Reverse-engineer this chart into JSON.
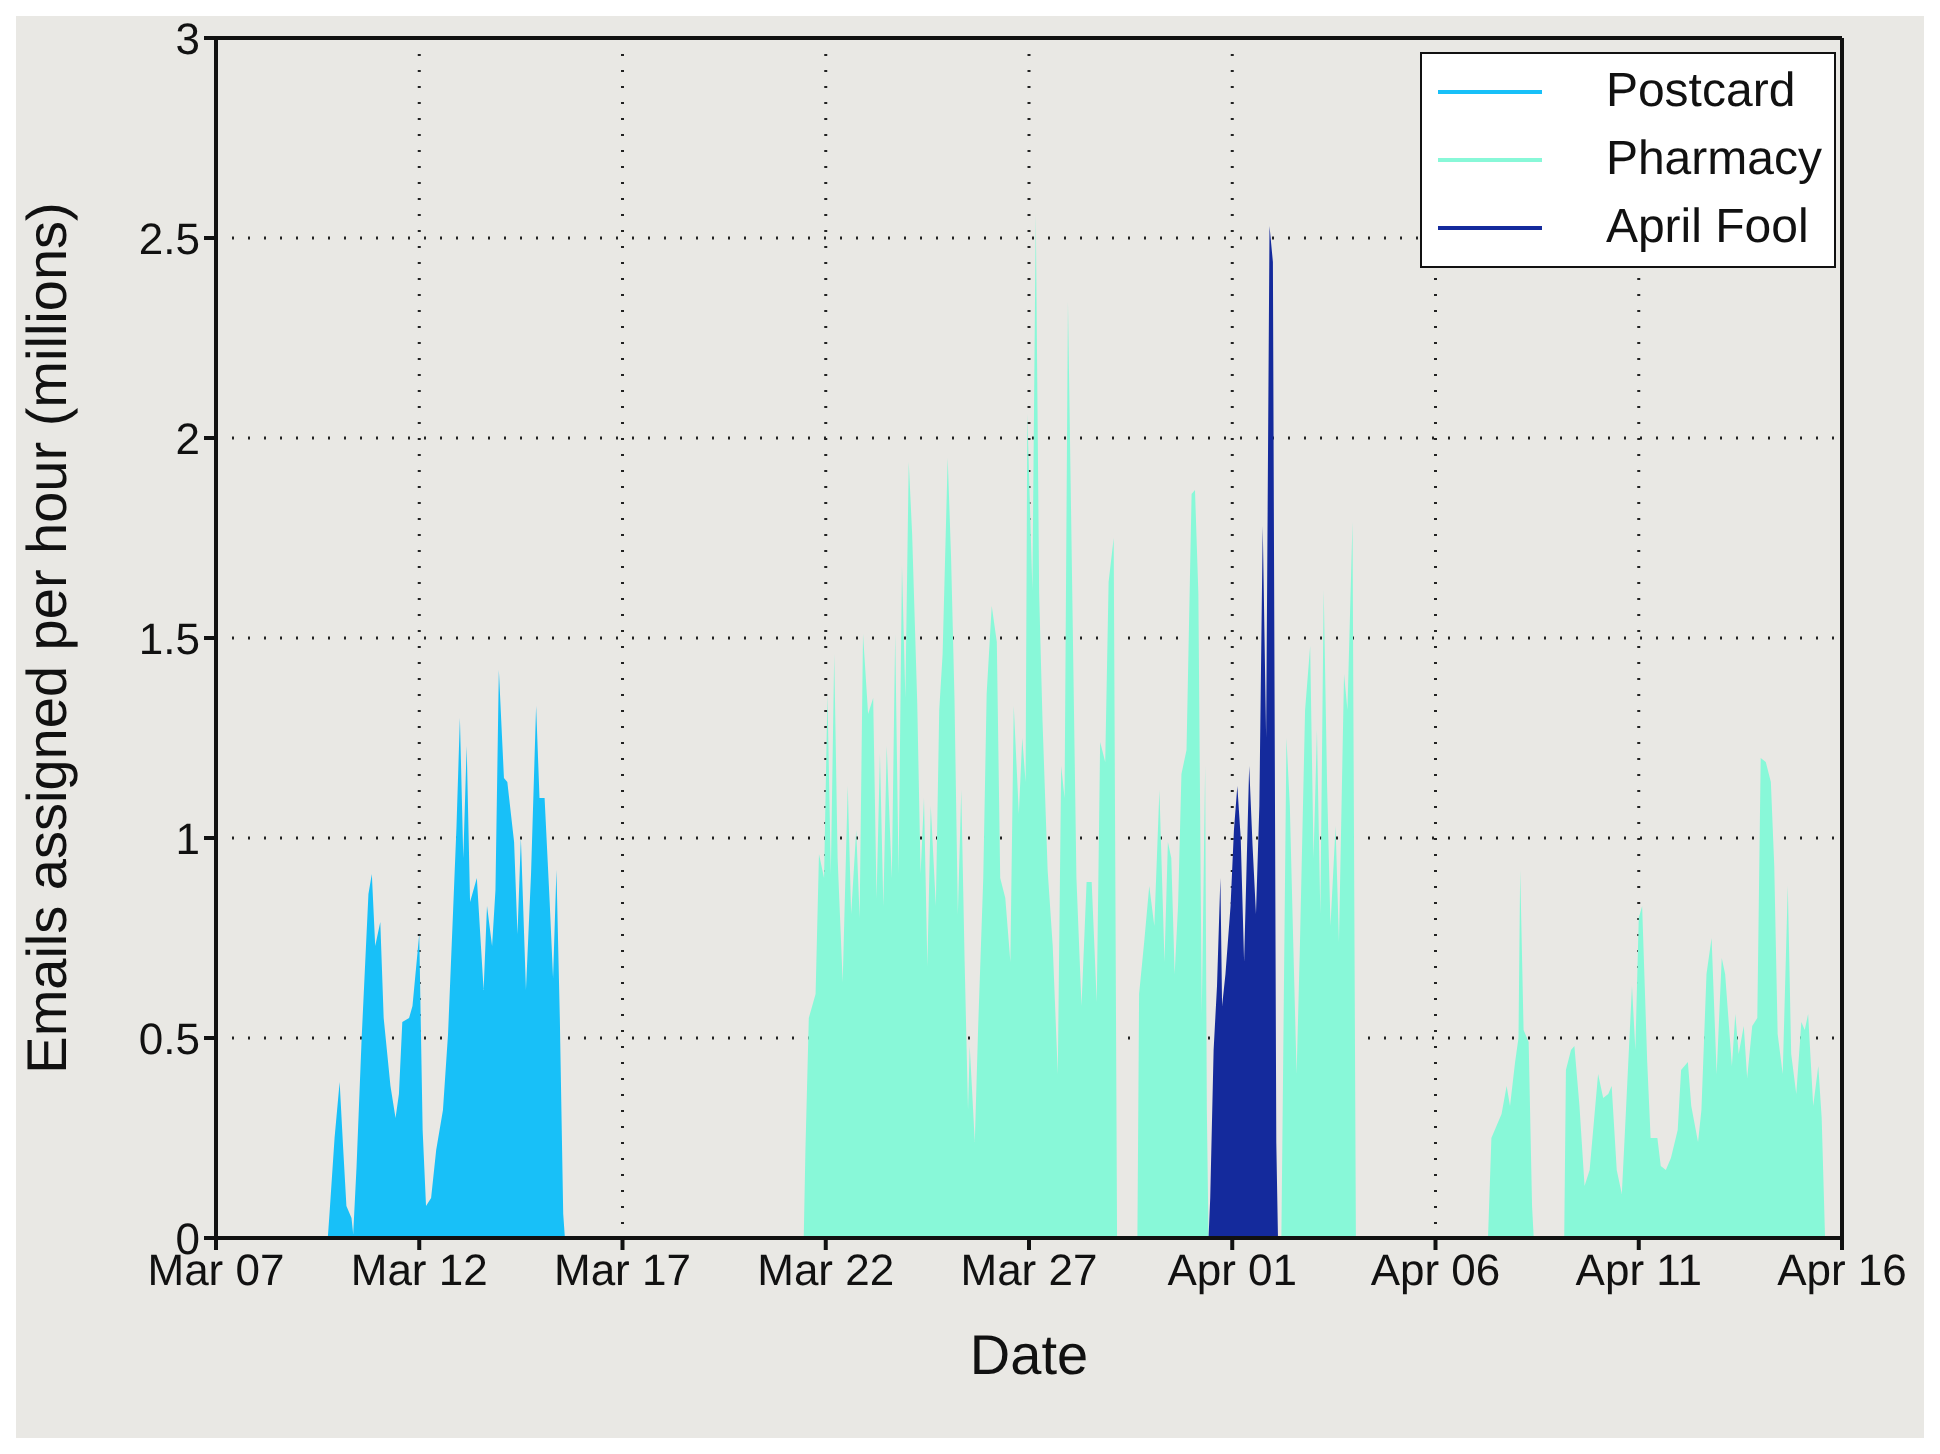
{
  "chart_data": {
    "type": "area",
    "xlabel": "Date",
    "ylabel": "Emails assigned per hour (millions)",
    "xlim": [
      "--03-07",
      "--04-16"
    ],
    "xticks": [
      {
        "value": "--03-07",
        "label": "Mar 07"
      },
      {
        "value": "--03-12",
        "label": "Mar 12"
      },
      {
        "value": "--03-17",
        "label": "Mar 17"
      },
      {
        "value": "--03-22",
        "label": "Mar 22"
      },
      {
        "value": "--03-27",
        "label": "Mar 27"
      },
      {
        "value": "--04-01",
        "label": "Apr 01"
      },
      {
        "value": "--04-06",
        "label": "Apr 06"
      },
      {
        "value": "--04-11",
        "label": "Apr 11"
      },
      {
        "value": "--04-16",
        "label": "Apr 16"
      }
    ],
    "ylim": [
      0,
      3
    ],
    "yticks": [
      0,
      0.5,
      1,
      1.5,
      2,
      2.5,
      3
    ],
    "grid": true,
    "legend": "top right",
    "series": [
      {
        "name": "Postcard",
        "color": "#18c0f8",
        "x": [
          "--03-09T18:00",
          "--03-09T19:00",
          "--03-09T22:00",
          "--03-10T01:00",
          "--03-10T03:00",
          "--03-10T05:00",
          "--03-10T08:00",
          "--03-10T09:00",
          "--03-10T11:00",
          "--03-10T14:00",
          "--03-10T18:00",
          "--03-10T20:00",
          "--03-10T22:00",
          "--03-11T01:00",
          "--03-11T03:00",
          "--03-11T07:00",
          "--03-11T10:00",
          "--03-11T12:00",
          "--03-11T14:00",
          "--03-11T18:00",
          "--03-11T20:00",
          "--03-12T00:00",
          "--03-12T02:00",
          "--03-12T04:00",
          "--03-12T07:00",
          "--03-12T10:00",
          "--03-12T14:00",
          "--03-12T17:00",
          "--03-12T20:00",
          "--03-12T22:00",
          "--03-13T00:00",
          "--03-13T02:00",
          "--03-13T04:00",
          "--03-13T06:00",
          "--03-13T10:00",
          "--03-13T14:00",
          "--03-13T16:00",
          "--03-13T19:00",
          "--03-13T21:00",
          "--03-13T23:00",
          "--03-14T02:00",
          "--03-14T04:00",
          "--03-14T08:00",
          "--03-14T10:00",
          "--03-14T12:00",
          "--03-14T15:00",
          "--03-14T18:00",
          "--03-14T21:00",
          "--03-14T23:00",
          "--03-15T02:00",
          "--03-15T05:00",
          "--03-15T07:00",
          "--03-15T09:00",
          "--03-15T11:00",
          "--03-15T13:00",
          "--03-15T14:00"
        ],
        "values": [
          0,
          0.06,
          0.25,
          0.39,
          0.23,
          0.08,
          0.05,
          0.01,
          0.18,
          0.5,
          0.86,
          0.91,
          0.73,
          0.79,
          0.55,
          0.38,
          0.3,
          0.36,
          0.54,
          0.55,
          0.58,
          0.76,
          0.27,
          0.08,
          0.1,
          0.22,
          0.32,
          0.51,
          0.82,
          1.03,
          1.3,
          0.95,
          1.23,
          0.84,
          0.9,
          0.62,
          0.83,
          0.73,
          0.87,
          1.42,
          1.15,
          1.14,
          0.99,
          0.76,
          1.0,
          0.62,
          0.91,
          1.33,
          1.1,
          1.1,
          0.84,
          0.65,
          0.92,
          0.55,
          0.06,
          0
        ]
      },
      {
        "name": "Pharmacy",
        "color": "#88f8d8",
        "x": [
          "--03-21T11:00",
          "--03-21T12:00",
          "--03-21T14:00",
          "--03-21T18:00",
          "--03-21T20:00",
          "--03-21T23:00",
          "--03-22T01:00",
          "--03-22T03:00",
          "--03-22T05:00",
          "--03-22T07:00",
          "--03-22T10:00",
          "--03-22T13:00",
          "--03-22T15:00",
          "--03-22T18:00",
          "--03-22T20:00",
          "--03-22T22:00",
          "--03-23T01:00",
          "--03-23T04:00",
          "--03-23T06:00",
          "--03-23T08:00",
          "--03-23T10:00",
          "--03-23T12:00",
          "--03-23T15:00",
          "--03-23T17:00",
          "--03-23T19:00",
          "--03-23T21:00",
          "--03-23T23:00",
          "--03-24T01:00",
          "--03-24T03:00",
          "--03-24T06:00",
          "--03-24T08:00",
          "--03-24T10:00",
          "--03-24T12:00",
          "--03-24T14:00",
          "--03-24T17:00",
          "--03-24T19:00",
          "--03-24T21:00",
          "--03-25T00:00",
          "--03-25T02:00",
          "--03-25T04:00",
          "--03-25T06:00",
          "--03-25T08:00",
          "--03-25T10:00",
          "--03-25T12:00",
          "--03-25T13:00",
          "--03-25T16:00",
          "--03-25T18:00",
          "--03-25T21:00",
          "--03-25T23:00",
          "--03-26T02:00",
          "--03-26T05:00",
          "--03-26T07:00",
          "--03-26T10:00",
          "--03-26T13:00",
          "--03-26T15:00",
          "--03-26T18:00",
          "--03-26T20:00",
          "--03-26T22:00",
          "--03-26T23:00",
          "--03-27T02:00",
          "--03-27T04:00",
          "--03-27T06:00",
          "--03-27T08:00",
          "--03-27T11:00",
          "--03-27T14:00",
          "--03-27T17:00",
          "--03-27T19:00",
          "--03-27T21:00",
          "--03-27T23:00",
          "--03-28T01:00",
          "--03-28T04:00",
          "--03-28T07:00",
          "--03-28T10:00",
          "--03-28T13:00",
          "--03-28T16:00",
          "--03-28T18:00",
          "--03-28T21:00",
          "--03-28T23:00",
          "--03-29T02:00",
          "--03-29T04:00",
          "--03-29T12:00",
          "--03-29T16:00",
          "--03-29T17:00",
          "--03-29T20:00",
          "--03-29T23:00",
          "--03-30T02:00",
          "--03-30T05:00",
          "--03-30T08:00",
          "--03-30T10:00",
          "--03-30T12:00",
          "--03-30T14:00",
          "--03-30T16:00",
          "--03-30T18:00",
          "--03-30T21:00",
          "--03-31T00:00",
          "--03-31T02:00",
          "--03-31T04:00",
          "--03-31T06:00",
          "--03-31T08:00",
          "--03-31T09:00",
          "--03-31T10:00",
          "--04-01T12:00",
          "--04-02T05:00",
          "--04-02T06:00",
          "--04-02T08:00",
          "--04-02T10:00",
          "--04-02T12:00",
          "--04-02T14:00",
          "--04-02T16:00",
          "--04-02T19:00",
          "--04-02T22:00",
          "--04-03T00:00",
          "--04-03T02:00",
          "--04-03T04:00",
          "--04-03T06:00",
          "--04-03T08:00",
          "--04-03T10:00",
          "--04-03T13:00",
          "--04-03T15:00",
          "--04-03T18:00",
          "--04-03T20:00",
          "--04-03T23:00",
          "--04-04T01:00",
          "--04-05T12:00",
          "--04-07T07:00",
          "--04-07T09:00",
          "--04-07T12:00",
          "--04-07T15:00",
          "--04-07T18:00",
          "--04-07T20:00",
          "--04-07T23:00",
          "--04-08T01:00",
          "--04-08T02:00",
          "--04-08T04:00",
          "--04-08T07:00",
          "--04-08T09:00",
          "--04-08T10:00",
          "--04-08T16:00",
          "--04-09T04:00",
          "--04-09T05:00",
          "--04-09T08:00",
          "--04-09T10:00",
          "--04-09T13:00",
          "--04-09T16:00",
          "--04-09T19:00",
          "--04-10T00:00",
          "--04-10T03:00",
          "--04-10T06:00",
          "--04-10T08:00",
          "--04-10T11:00",
          "--04-10T14:00",
          "--04-10T16:00",
          "--04-10T20:00",
          "--04-10T22:00",
          "--04-11T00:00",
          "--04-11T02:00",
          "--04-11T05:00",
          "--04-11T07:00",
          "--04-11T11:00",
          "--04-11T13:00",
          "--04-11T16:00",
          "--04-11T19:00",
          "--04-11T23:00",
          "--04-12T01:00",
          "--04-12T05:00",
          "--04-12T07:00",
          "--04-12T11:00",
          "--04-12T13:00",
          "--04-12T16:00",
          "--04-12T19:00",
          "--04-12T22:00",
          "--04-13T01:00",
          "--04-13T03:00",
          "--04-13T07:00",
          "--04-13T09:00",
          "--04-13T11:00",
          "--04-13T14:00",
          "--04-13T16:00",
          "--04-13T19:00",
          "--04-13T22:00",
          "--04-14T00:00",
          "--04-14T03:00",
          "--04-14T06:00",
          "--04-14T08:00",
          "--04-14T10:00",
          "--04-14T13:00",
          "--04-14T16:00",
          "--04-14T18:00",
          "--04-14T21:00",
          "--04-15T00:00",
          "--04-15T02:00",
          "--04-15T04:00",
          "--04-15T07:00",
          "--04-15T10:00",
          "--04-15T12:00",
          "--04-15T14:00"
        ],
        "values": [
          0,
          0.22,
          0.55,
          0.61,
          0.96,
          0.9,
          1.36,
          0.91,
          1.46,
          0.95,
          0.64,
          1.13,
          0.81,
          1.02,
          0.8,
          1.51,
          1.31,
          1.35,
          0.85,
          1.21,
          0.83,
          1.23,
          0.9,
          1.51,
          0.91,
          1.68,
          1.35,
          1.94,
          1.76,
          1.34,
          0.91,
          1.1,
          0.68,
          1.08,
          0.83,
          1.32,
          1.46,
          1.95,
          1.7,
          1.35,
          0.81,
          1.12,
          0.69,
          0.32,
          0.48,
          0.24,
          0.53,
          0.9,
          1.36,
          1.58,
          1.49,
          0.9,
          0.85,
          0.69,
          1.33,
          1.06,
          1.25,
          1.14,
          2.06,
          1.62,
          2.56,
          1.61,
          1.29,
          0.92,
          0.73,
          0.41,
          1.18,
          1.1,
          2.34,
          1.77,
          0.9,
          0.58,
          0.89,
          0.89,
          0.59,
          1.24,
          1.19,
          1.64,
          1.75,
          0,
          null,
          0,
          0.61,
          0.74,
          0.88,
          0.78,
          1.12,
          0.69,
          0.99,
          0.95,
          0.66,
          0.83,
          1.16,
          1.22,
          1.86,
          1.87,
          1.61,
          0.56,
          1.18,
          0.32,
          0,
          null,
          0,
          0.41,
          1.25,
          1.08,
          0.74,
          0.41,
          0.74,
          1.32,
          1.48,
          0.95,
          1.27,
          0.81,
          1.62,
          1.13,
          0.78,
          1.03,
          0.74,
          1.41,
          1.32,
          1.79,
          0,
          null,
          0,
          0.25,
          0.28,
          0.31,
          0.38,
          0.33,
          0.44,
          0.5,
          0.92,
          0.52,
          0.49,
          0.08,
          0,
          null,
          0,
          0.42,
          0.47,
          0.48,
          0.33,
          0.13,
          0.17,
          0.41,
          0.35,
          0.36,
          0.38,
          0.17,
          0.11,
          0.28,
          0.63,
          0.47,
          0.8,
          0.83,
          0.44,
          0.25,
          0.25,
          0.18,
          0.17,
          0.2,
          0.27,
          0.42,
          0.44,
          0.33,
          0.24,
          0.32,
          0.66,
          0.75,
          0.41,
          0.7,
          0.66,
          0.43,
          0.56,
          0.46,
          0.53,
          0.4,
          0.53,
          0.55,
          1.2,
          1.19,
          1.14,
          0.93,
          0.51,
          0.41,
          0.88,
          0.46,
          0.36,
          0.54,
          0.52,
          0.56,
          0.33,
          0.43,
          0.3,
          0
        ]
      },
      {
        "name": "April Fool",
        "color": "#142a9c",
        "x": [
          "--03-31T10:00",
          "--03-31T11:00",
          "--03-31T13:00",
          "--03-31T15:00",
          "--03-31T17:00",
          "--03-31T18:00",
          "--03-31T20:00",
          "--03-31T23:00",
          "--04-01T01:00",
          "--04-01T03:00",
          "--04-01T05:00",
          "--04-01T07:00",
          "--04-01T10:00",
          "--04-01T12:00",
          "--04-01T14:00",
          "--04-01T16:00",
          "--04-01T18:00",
          "--04-01T20:00",
          "--04-01T22:00",
          "--04-02T00:00",
          "--04-02T02:00",
          "--04-02T03:00"
        ],
        "values": [
          0,
          0.1,
          0.47,
          0.63,
          0.9,
          0.58,
          0.66,
          0.83,
          1.02,
          1.13,
          1.0,
          0.69,
          1.18,
          0.98,
          0.81,
          1.08,
          1.78,
          1.25,
          2.53,
          2.44,
          0.24,
          0
        ]
      }
    ]
  }
}
